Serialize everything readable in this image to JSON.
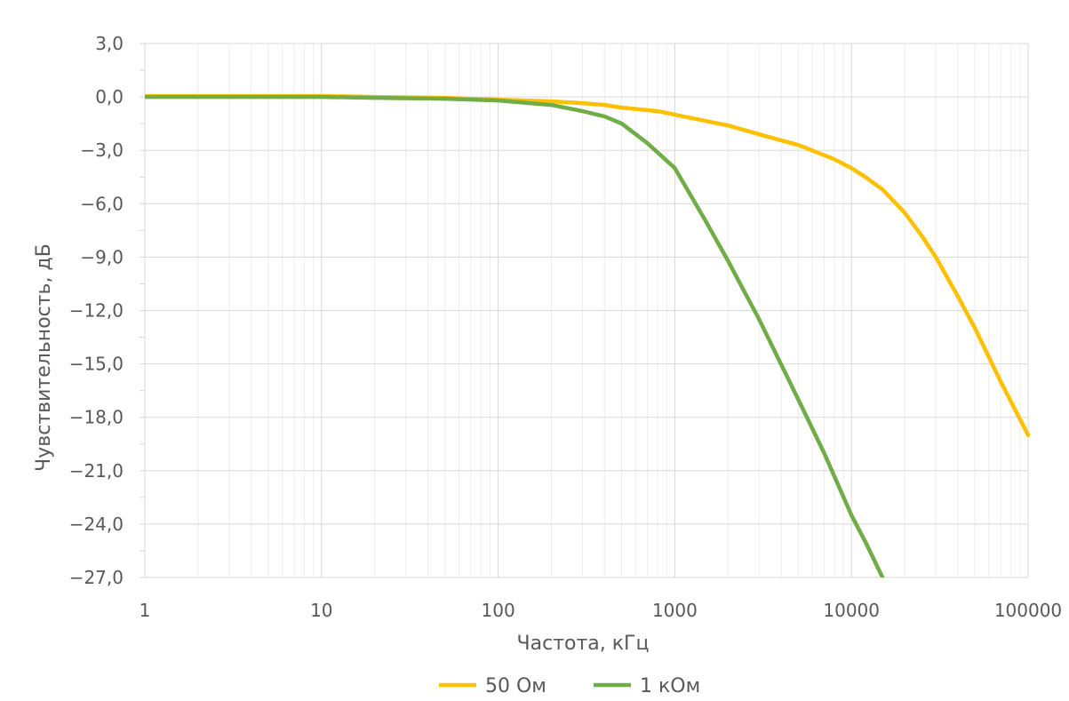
{
  "chart_data": {
    "type": "line",
    "xscale": "log",
    "xlabel": "Частота, кГц",
    "ylabel": "Чувствительность, дБ",
    "xlim": [
      1,
      100000
    ],
    "ylim": [
      -27,
      3
    ],
    "xticks": [
      "1",
      "10",
      "100",
      "1000",
      "10000",
      "100000"
    ],
    "yticks": [
      "3,0",
      "0,0",
      "−3,0",
      "−6,0",
      "−9,0",
      "−12,0",
      "−15,0",
      "−18,0",
      "−21,0",
      "−24,0",
      "−27,0"
    ],
    "grid": true,
    "legend": "bottom",
    "series": [
      {
        "name": "50 Ом",
        "color": "#FFC000",
        "x": [
          1,
          10,
          20,
          50,
          100,
          200,
          300,
          400,
          500,
          800,
          1000,
          2000,
          3000,
          5000,
          8000,
          10000,
          12000,
          15000,
          20000,
          25000,
          30000,
          40000,
          50000,
          70000,
          100000
        ],
        "y": [
          0.05,
          0.05,
          0.0,
          -0.05,
          -0.15,
          -0.25,
          -0.35,
          -0.45,
          -0.6,
          -0.8,
          -1.0,
          -1.6,
          -2.1,
          -2.7,
          -3.5,
          -4.0,
          -4.5,
          -5.2,
          -6.5,
          -7.8,
          -9.0,
          -11.2,
          -13.0,
          -16.0,
          -19.0
        ]
      },
      {
        "name": "1 кОм",
        "color": "#70AD47",
        "x": [
          1,
          10,
          20,
          50,
          100,
          200,
          300,
          400,
          500,
          700,
          1000,
          1500,
          2000,
          3000,
          5000,
          7000,
          10000,
          12000,
          15000
        ],
        "y": [
          0.0,
          0.0,
          -0.05,
          -0.1,
          -0.2,
          -0.45,
          -0.8,
          -1.1,
          -1.5,
          -2.6,
          -4.0,
          -7.0,
          -9.2,
          -12.5,
          -17.0,
          -20.0,
          -23.5,
          -25.0,
          -27.0
        ]
      }
    ]
  }
}
